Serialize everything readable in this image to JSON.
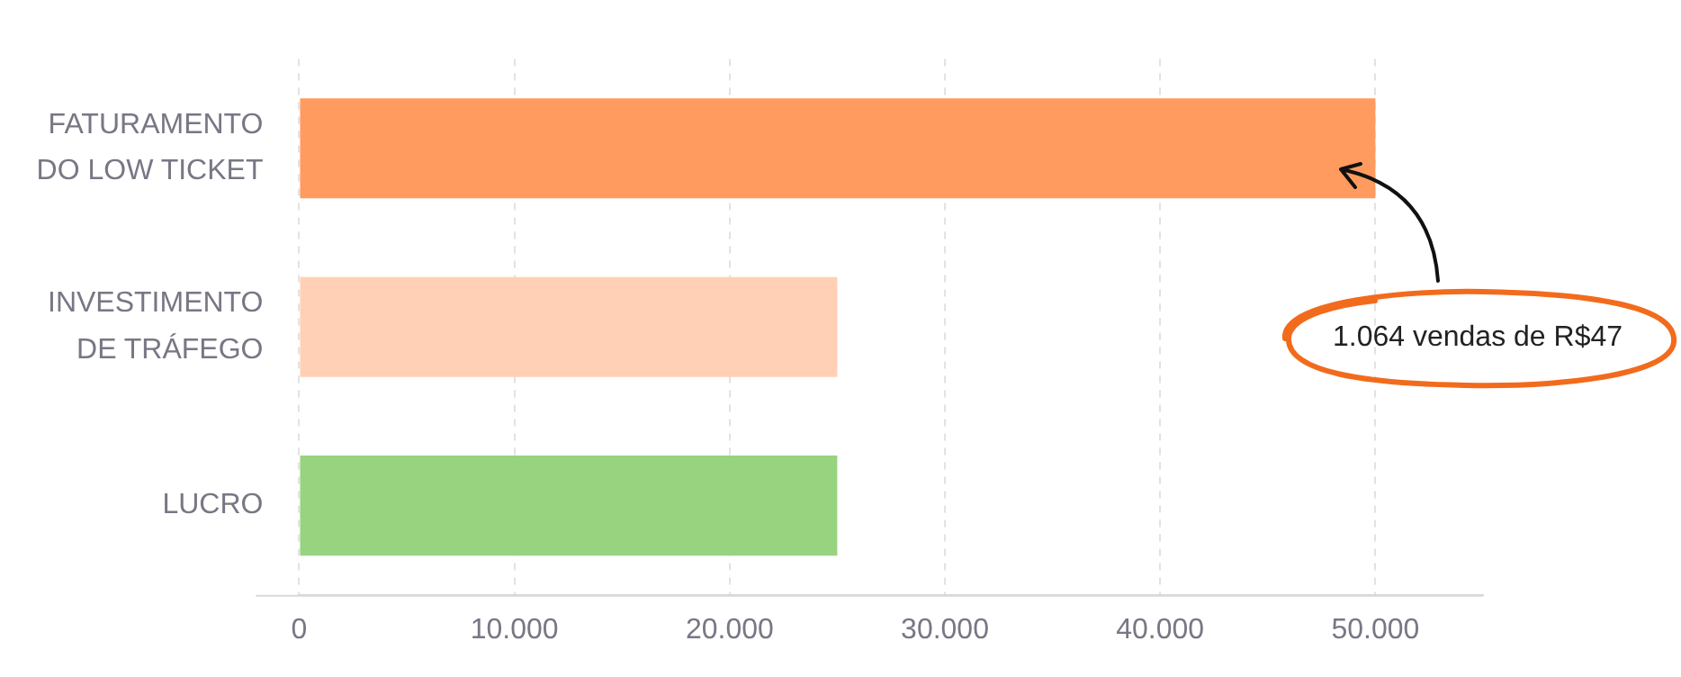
{
  "chart_data": {
    "type": "bar",
    "orientation": "horizontal",
    "categories": [
      "FATURAMENTO DO LOW TICKET",
      "INVESTIMENTO DE TRÁFEGO",
      "LUCRO"
    ],
    "values": [
      50000,
      25000,
      25000
    ],
    "colors": [
      "#ff9b5e",
      "#ffd0b5",
      "#98d47f"
    ],
    "xlim": [
      0,
      55000
    ],
    "xticks": [
      {
        "value": 0,
        "label": "0"
      },
      {
        "value": 10000,
        "label": "10.000"
      },
      {
        "value": 20000,
        "label": "20.000"
      },
      {
        "value": 30000,
        "label": "30.000"
      },
      {
        "value": 40000,
        "label": "40.000"
      },
      {
        "value": 50000,
        "label": "50.000"
      }
    ],
    "grid": "x",
    "annotations": [
      "1.064 vendas de R$47"
    ]
  }
}
